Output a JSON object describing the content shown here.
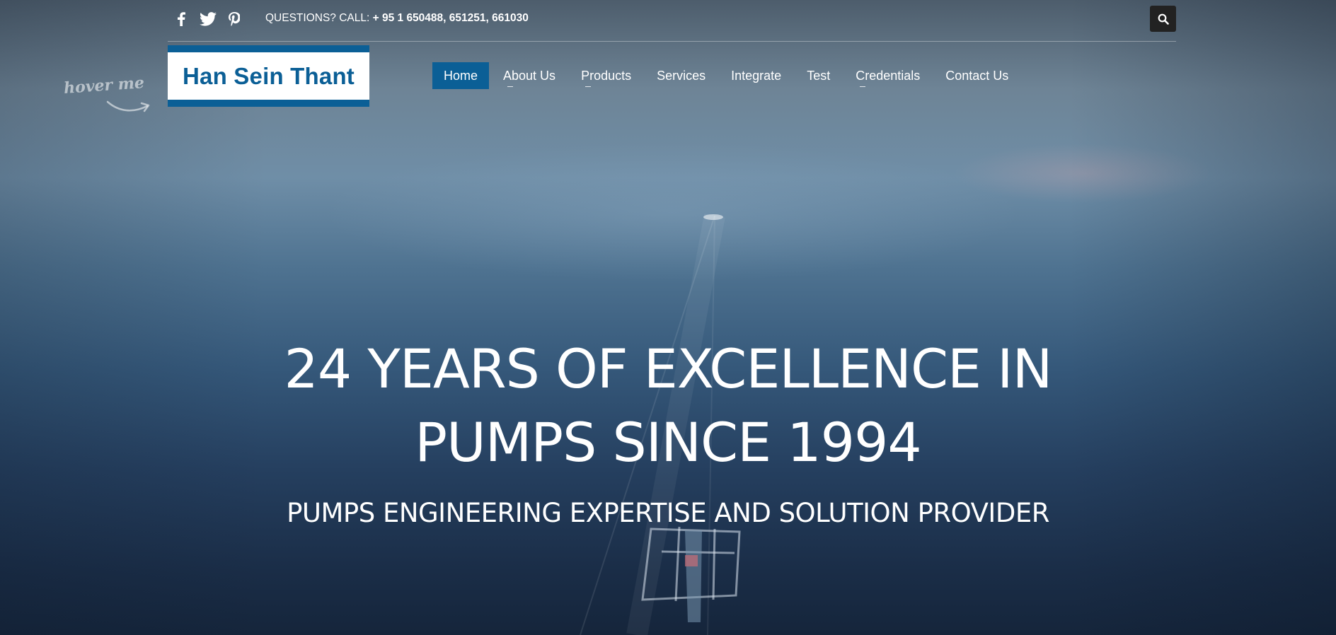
{
  "header": {
    "social": [
      {
        "icon": "facebook-icon"
      },
      {
        "icon": "twitter-icon"
      },
      {
        "icon": "pinterest-icon"
      }
    ],
    "call_label": "QUESTIONS? CALL:",
    "call_numbers": "+ 95 1 650488, 651251, 661030",
    "search_icon": "search-icon"
  },
  "logo": {
    "text": "Han Sein Thant"
  },
  "hover_hint": "hover me",
  "nav": {
    "items": [
      {
        "label": "Home"
      },
      {
        "label": "About Us"
      },
      {
        "label": "Products"
      },
      {
        "label": "Services"
      },
      {
        "label": "Integrate"
      },
      {
        "label": "Test"
      },
      {
        "label": "Credentials"
      },
      {
        "label": "Contact Us"
      }
    ]
  },
  "hero": {
    "title_line1": "24 YEARS OF EXCELLENCE IN",
    "title_line2": "PUMPS SINCE 1994",
    "subtitle": "PUMPS ENGINEERING EXPERTISE AND SOLUTION PROVIDER"
  },
  "colors": {
    "brand_blue": "#0b5f96",
    "search_bg": "#222222"
  }
}
